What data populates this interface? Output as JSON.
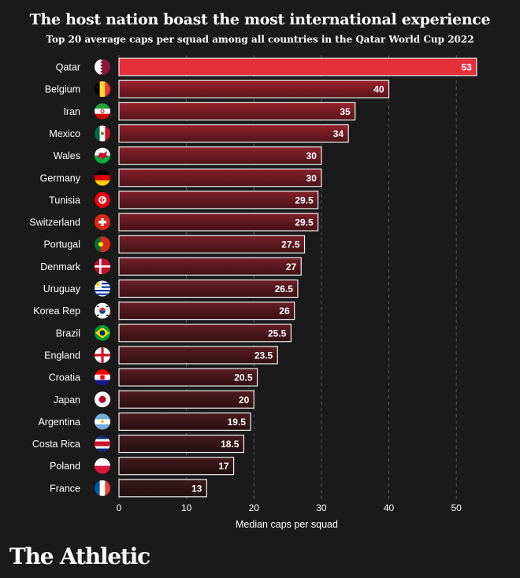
{
  "chart_data": {
    "type": "bar",
    "orientation": "horizontal",
    "title": "The host nation boast the most international experience",
    "subtitle": "Top 20 average caps per squad among all countries in the Qatar World Cup 2022",
    "xlabel": "Median caps per squad",
    "ylabel": "",
    "xlim": [
      0,
      55
    ],
    "xticks": [
      0,
      10,
      20,
      30,
      40,
      50
    ],
    "grid": true,
    "categories": [
      "Qatar",
      "Belgium",
      "Iran",
      "Mexico",
      "Wales",
      "Germany",
      "Tunisia",
      "Switzerland",
      "Portugal",
      "Denmark",
      "Uruguay",
      "Korea Rep",
      "Brazil",
      "England",
      "Croatia",
      "Japan",
      "Argentina",
      "Costa Rica",
      "Poland",
      "France"
    ],
    "values": [
      53,
      40,
      35,
      34,
      30,
      30,
      29.5,
      29.5,
      27.5,
      27,
      26.5,
      26,
      25.5,
      23.5,
      20.5,
      20,
      19.5,
      18.5,
      17,
      13
    ],
    "labels": [
      "53",
      "40",
      "35",
      "34",
      "30",
      "30",
      "29.5",
      "29.5",
      "27.5",
      "27",
      "26.5",
      "26",
      "25.5",
      "23.5",
      "20.5",
      "20",
      "19.5",
      "18.5",
      "17",
      "13"
    ]
  },
  "flag_icons": [
    "qatar-flag-icon",
    "belgium-flag-icon",
    "iran-flag-icon",
    "mexico-flag-icon",
    "wales-flag-icon",
    "germany-flag-icon",
    "tunisia-flag-icon",
    "switzerland-flag-icon",
    "portugal-flag-icon",
    "denmark-flag-icon",
    "uruguay-flag-icon",
    "korea-rep-flag-icon",
    "brazil-flag-icon",
    "england-flag-icon",
    "croatia-flag-icon",
    "japan-flag-icon",
    "argentina-flag-icon",
    "costa-rica-flag-icon",
    "poland-flag-icon",
    "france-flag-icon"
  ],
  "colors": {
    "background": "#1a1a1a",
    "highlight_bar": "#e5303a",
    "bar_top": "#9e2330",
    "bar_bottom": "#3a1a1e",
    "bar_border": "#f2f2f2",
    "grid": "#555555",
    "text": "#ffffff"
  },
  "brand": {
    "logo": "The Athletic"
  }
}
